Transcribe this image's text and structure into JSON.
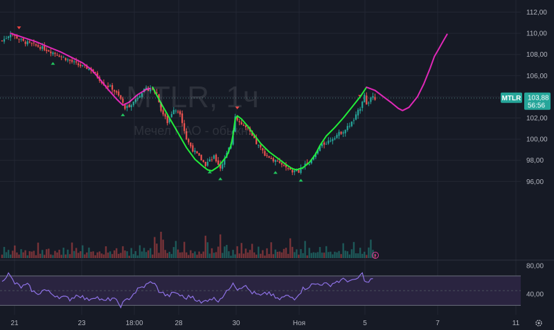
{
  "watermark": {
    "symbol": "MTLR, 1ч",
    "name": "Мечел ПАО - обыкн."
  },
  "colors": {
    "background": "#161a25",
    "grid": "#232734",
    "up": "#26a69a",
    "down": "#ef5350",
    "forecast_green": "#22ee3a",
    "forecast_pink": "#e028b8",
    "rsi_line": "#8e72e6",
    "rsi_band": "#2a2440",
    "text": "#b2b5be"
  },
  "price_axis": {
    "ticks": [
      "112,00",
      "110,00",
      "108,00",
      "106,00",
      "104,00",
      "102,00",
      "100,00",
      "98,00",
      "96,00"
    ]
  },
  "rsi_axis": {
    "ticks": [
      "80,00",
      "40,00"
    ]
  },
  "time_axis": {
    "ticks": [
      "21",
      "23",
      "18:00",
      "28",
      "30",
      "Ноя",
      "5",
      "7",
      "11"
    ]
  },
  "last_price": {
    "symbol": "MTLR",
    "price": "103,88",
    "countdown": "56:56"
  },
  "icons": {
    "settings": "gear-icon",
    "alert": "lightning-circle-icon"
  },
  "chart_data": [
    {
      "type": "candlestick",
      "title": "MTLR, 1ч",
      "subtitle": "Мечел ПАО - обыкн.",
      "y_unit": "RUB",
      "ylim": [
        94.7,
        112.5
      ],
      "x_ticks": [
        "21",
        "23",
        "18:00",
        "28",
        "30",
        "Ноя",
        "5",
        "7",
        "11"
      ],
      "grid": true,
      "price_anchors": [
        [
          0,
          109.3
        ],
        [
          2,
          109.6
        ],
        [
          4,
          110.0
        ],
        [
          10,
          109.2
        ],
        [
          18,
          108.7
        ],
        [
          24,
          108.2
        ],
        [
          30,
          107.6
        ],
        [
          36,
          107.0
        ],
        [
          42,
          106.6
        ],
        [
          48,
          105.2
        ],
        [
          52,
          104.8
        ],
        [
          56,
          103.8
        ],
        [
          58,
          102.9
        ],
        [
          62,
          103.5
        ],
        [
          66,
          104.5
        ],
        [
          70,
          104.8
        ],
        [
          73,
          104.3
        ],
        [
          75,
          102.8
        ],
        [
          78,
          101.6
        ],
        [
          81,
          102.9
        ],
        [
          84,
          102.5
        ],
        [
          87,
          100.0
        ],
        [
          90,
          99.0
        ],
        [
          93,
          98.3
        ],
        [
          96,
          97.6
        ],
        [
          100,
          98.3
        ],
        [
          103,
          97.3
        ],
        [
          106,
          98.6
        ],
        [
          108,
          99.6
        ],
        [
          110,
          102.2
        ],
        [
          112,
          101.6
        ],
        [
          116,
          100.9
        ],
        [
          120,
          99.6
        ],
        [
          124,
          98.6
        ],
        [
          128,
          98.0
        ],
        [
          132,
          97.6
        ],
        [
          136,
          97.0
        ],
        [
          140,
          96.9
        ],
        [
          143,
          97.7
        ],
        [
          146,
          97.9
        ],
        [
          150,
          99.3
        ],
        [
          154,
          99.8
        ],
        [
          158,
          100.4
        ],
        [
          162,
          100.9
        ],
        [
          166,
          101.8
        ],
        [
          169,
          103.0
        ],
        [
          171,
          104.3
        ],
        [
          172,
          103.2
        ],
        [
          174,
          103.9
        ],
        [
          176,
          103.88
        ]
      ],
      "volume_levels": [
        0.15,
        0.5,
        0.25,
        0.35,
        0.2,
        0.3,
        0.55,
        0.2,
        0.18,
        0.4,
        0.25,
        0.3,
        0.12,
        0.35,
        0.22,
        0.28
      ],
      "volume_spikes": [
        [
          57,
          0.45
        ],
        [
          72,
          0.8
        ],
        [
          73,
          0.55
        ],
        [
          75,
          1.0
        ],
        [
          76,
          0.7
        ],
        [
          82,
          0.65
        ],
        [
          96,
          0.85
        ],
        [
          97,
          0.6
        ],
        [
          103,
          0.9
        ],
        [
          106,
          0.5
        ],
        [
          111,
          0.45
        ],
        [
          127,
          0.6
        ],
        [
          136,
          0.75
        ],
        [
          143,
          0.65
        ],
        [
          174,
          0.7
        ]
      ],
      "markers_up": [
        24,
        57,
        98,
        103,
        129,
        141
      ],
      "markers_down": [
        8,
        111,
        169
      ]
    },
    {
      "type": "line",
      "series": [
        {
          "name": "",
          "color": "#22ee3a",
          "x": [
            71,
            75,
            79,
            83,
            87,
            91,
            95,
            97,
            99,
            102,
            106,
            108,
            109,
            110,
            111,
            113,
            116,
            119,
            122,
            126,
            130,
            134,
            137,
            139,
            142,
            145,
            148,
            150,
            153,
            157,
            161,
            165,
            169,
            172
          ],
          "y": [
            104.9,
            103.4,
            102.0,
            100.6,
            99.2,
            98.1,
            97.4,
            97.1,
            97.0,
            97.4,
            98.4,
            99.4,
            100.4,
            101.9,
            102.2,
            101.9,
            101.2,
            100.4,
            99.6,
            98.8,
            98.2,
            97.6,
            97.2,
            97.1,
            97.3,
            97.8,
            98.6,
            99.4,
            100.3,
            101.1,
            102.0,
            103.0,
            104.0,
            104.9
          ]
        },
        {
          "name": "",
          "color": "#e028b8",
          "x": [
            4,
            10,
            16,
            22,
            28,
            34,
            38,
            42,
            46,
            50,
            54,
            57,
            60,
            64,
            68,
            70
          ],
          "y": [
            110.0,
            109.6,
            109.2,
            108.7,
            108.2,
            107.6,
            107.2,
            106.6,
            105.7,
            104.7,
            103.8,
            103.2,
            103.5,
            104.2,
            104.7,
            104.8
          ]
        },
        {
          "name": "",
          "color": "#e028b8",
          "x": [
            172,
            176,
            180,
            184,
            187,
            189,
            192,
            196,
            199,
            202,
            204,
            206,
            208,
            210
          ],
          "y": [
            104.9,
            104.6,
            104.0,
            103.4,
            102.9,
            102.7,
            103.0,
            104.0,
            105.2,
            106.7,
            107.8,
            108.5,
            109.2,
            109.9
          ]
        }
      ]
    },
    {
      "type": "line",
      "name": "RSI",
      "ylim": [
        30,
        85
      ],
      "band": [
        38,
        70
      ],
      "ticks": [
        80,
        40
      ],
      "anchors": [
        [
          0,
          66
        ],
        [
          3,
          72
        ],
        [
          6,
          62
        ],
        [
          9,
          58
        ],
        [
          12,
          60
        ],
        [
          16,
          50
        ],
        [
          20,
          55
        ],
        [
          24,
          50
        ],
        [
          28,
          47
        ],
        [
          32,
          45
        ],
        [
          36,
          50
        ],
        [
          40,
          44
        ],
        [
          44,
          48
        ],
        [
          48,
          42
        ],
        [
          52,
          46
        ],
        [
          56,
          38
        ],
        [
          60,
          46
        ],
        [
          64,
          55
        ],
        [
          68,
          60
        ],
        [
          71,
          64
        ],
        [
          74,
          54
        ],
        [
          78,
          48
        ],
        [
          82,
          52
        ],
        [
          86,
          46
        ],
        [
          90,
          48
        ],
        [
          94,
          40
        ],
        [
          98,
          46
        ],
        [
          102,
          44
        ],
        [
          106,
          52
        ],
        [
          109,
          64
        ],
        [
          111,
          56
        ],
        [
          114,
          60
        ],
        [
          118,
          52
        ],
        [
          122,
          48
        ],
        [
          126,
          52
        ],
        [
          130,
          44
        ],
        [
          134,
          48
        ],
        [
          138,
          46
        ],
        [
          142,
          56
        ],
        [
          146,
          60
        ],
        [
          150,
          62
        ],
        [
          154,
          60
        ],
        [
          158,
          64
        ],
        [
          162,
          66
        ],
        [
          166,
          64
        ],
        [
          170,
          72
        ],
        [
          172,
          62
        ],
        [
          175,
          67
        ]
      ]
    }
  ]
}
